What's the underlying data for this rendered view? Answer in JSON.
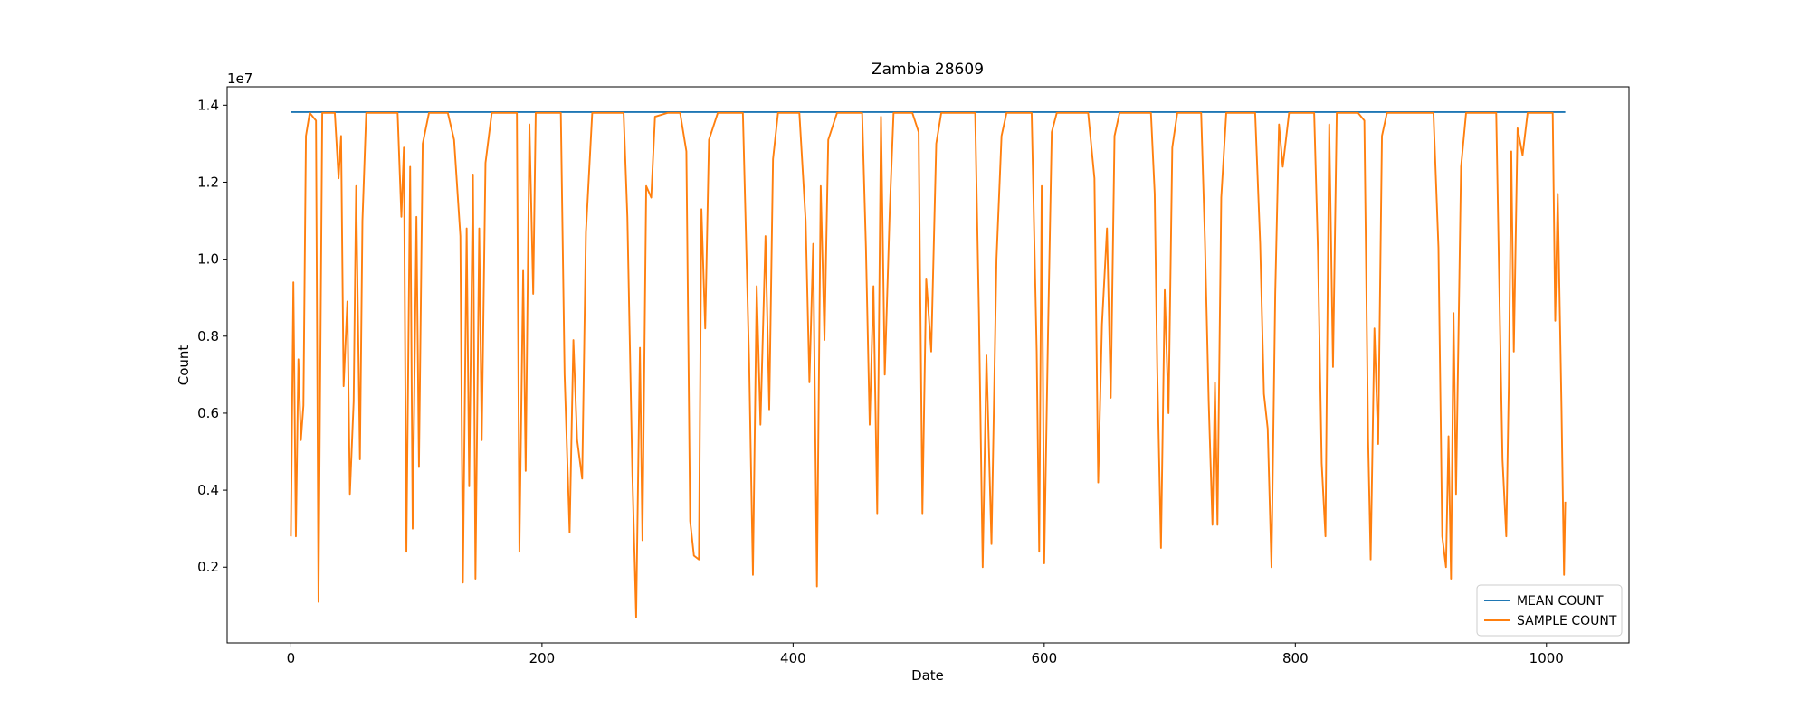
{
  "chart_data": {
    "type": "line",
    "title": "Zambia 28609",
    "x_label": "Date",
    "y_label": "Count",
    "y_offset_label": "1e7",
    "xlim": [
      -50.75,
      1065.75
    ],
    "xticks": [
      0,
      200,
      400,
      600,
      800,
      1000
    ],
    "ylim": [
      33000,
      14477000
    ],
    "yticks": [
      {
        "value": 2000000,
        "label": "0.2"
      },
      {
        "value": 4000000,
        "label": "0.4"
      },
      {
        "value": 6000000,
        "label": "0.6"
      },
      {
        "value": 8000000,
        "label": "0.8"
      },
      {
        "value": 10000000,
        "label": "1.0"
      },
      {
        "value": 12000000,
        "label": "1.2"
      },
      {
        "value": 14000000,
        "label": "1.4"
      }
    ],
    "legend": "lower right",
    "grid": false,
    "series": [
      {
        "name": "MEAN COUNT",
        "color": "#1f77b4",
        "x": [
          0,
          1015
        ],
        "values": [
          13820000,
          13820000
        ]
      },
      {
        "name": "SAMPLE COUNT",
        "color": "#ff7f0e",
        "x": [
          0,
          2,
          4,
          6,
          8,
          10,
          12,
          15,
          20,
          22,
          25,
          35,
          38,
          40,
          42,
          45,
          47,
          50,
          52,
          55,
          57,
          60,
          70,
          80,
          85,
          88,
          90,
          92,
          95,
          97,
          100,
          102,
          105,
          110,
          120,
          125,
          130,
          135,
          137,
          140,
          142,
          145,
          147,
          150,
          152,
          155,
          160,
          170,
          180,
          182,
          185,
          187,
          190,
          193,
          195,
          205,
          215,
          218,
          222,
          225,
          228,
          232,
          235,
          240,
          250,
          265,
          268,
          272,
          275,
          278,
          280,
          283,
          287,
          290,
          300,
          310,
          315,
          318,
          321,
          325,
          327,
          330,
          333,
          340,
          350,
          360,
          365,
          368,
          371,
          374,
          378,
          381,
          384,
          388,
          398,
          405,
          410,
          413,
          416,
          419,
          422,
          425,
          428,
          435,
          445,
          455,
          458,
          461,
          464,
          467,
          470,
          473,
          477,
          480,
          490,
          495,
          500,
          503,
          506,
          510,
          514,
          518,
          530,
          545,
          548,
          551,
          554,
          558,
          562,
          566,
          570,
          580,
          590,
          594,
          596,
          598,
          600,
          603,
          606,
          610,
          620,
          635,
          640,
          643,
          646,
          650,
          653,
          656,
          660,
          670,
          685,
          688,
          690,
          693,
          696,
          699,
          702,
          706,
          715,
          725,
          728,
          731,
          734,
          736,
          738,
          741,
          745,
          755,
          768,
          772,
          775,
          778,
          781,
          784,
          787,
          790,
          795,
          805,
          815,
          818,
          821,
          824,
          827,
          830,
          833,
          840,
          850,
          855,
          858,
          860,
          863,
          866,
          869,
          873,
          885,
          895,
          910,
          914,
          917,
          920,
          922,
          924,
          926,
          928,
          932,
          936,
          945,
          960,
          963,
          965,
          968,
          970,
          972,
          974,
          977,
          981,
          985,
          995,
          1005,
          1007,
          1009,
          1012,
          1014,
          1015
        ],
        "values": [
          2800000,
          9400000,
          2800000,
          7400000,
          5300000,
          6200000,
          13200000,
          13800000,
          13600000,
          1100000,
          13800000,
          13800000,
          12100000,
          13200000,
          6700000,
          8900000,
          3900000,
          6300000,
          11900000,
          4800000,
          11000000,
          13800000,
          13800000,
          13800000,
          13800000,
          11100000,
          12900000,
          2400000,
          12400000,
          3000000,
          11100000,
          4600000,
          13000000,
          13800000,
          13800000,
          13800000,
          13100000,
          10600000,
          1600000,
          10800000,
          4100000,
          12200000,
          1700000,
          10800000,
          5300000,
          12500000,
          13800000,
          13800000,
          13800000,
          2400000,
          9700000,
          4500000,
          13500000,
          9100000,
          13800000,
          13800000,
          13800000,
          7000000,
          2900000,
          7900000,
          5300000,
          4300000,
          10700000,
          13800000,
          13800000,
          13800000,
          11100000,
          4400000,
          700000,
          7700000,
          2700000,
          11900000,
          11600000,
          13700000,
          13800000,
          13800000,
          12800000,
          3200000,
          2300000,
          2200000,
          11300000,
          8200000,
          13100000,
          13800000,
          13800000,
          13800000,
          7300000,
          1800000,
          9300000,
          5700000,
          10600000,
          6100000,
          12600000,
          13800000,
          13800000,
          13800000,
          11000000,
          6800000,
          10400000,
          1500000,
          11900000,
          7900000,
          13100000,
          13800000,
          13800000,
          13800000,
          10300000,
          5700000,
          9300000,
          3400000,
          13700000,
          7000000,
          11300000,
          13800000,
          13800000,
          13800000,
          13300000,
          3400000,
          9500000,
          7600000,
          13000000,
          13800000,
          13800000,
          13800000,
          8600000,
          2000000,
          7500000,
          2600000,
          10000000,
          13200000,
          13800000,
          13800000,
          13800000,
          7600000,
          2400000,
          11900000,
          2100000,
          8000000,
          13300000,
          13800000,
          13800000,
          13800000,
          12100000,
          4200000,
          8300000,
          10800000,
          6400000,
          13200000,
          13800000,
          13800000,
          13800000,
          11700000,
          7200000,
          2500000,
          9200000,
          6000000,
          12900000,
          13800000,
          13800000,
          13800000,
          10500000,
          6300000,
          3100000,
          6800000,
          3100000,
          11600000,
          13800000,
          13800000,
          13800000,
          10400000,
          6500000,
          5600000,
          2000000,
          9100000,
          13500000,
          12400000,
          13800000,
          13800000,
          13800000,
          10200000,
          4700000,
          2800000,
          13500000,
          7200000,
          13800000,
          13800000,
          13800000,
          13600000,
          5300000,
          2200000,
          8200000,
          5200000,
          13200000,
          13800000,
          13800000,
          13800000,
          13800000,
          10300000,
          2800000,
          2000000,
          5400000,
          1700000,
          8600000,
          3900000,
          12400000,
          13800000,
          13800000,
          13800000,
          8300000,
          4800000,
          2800000,
          6700000,
          12800000,
          7600000,
          13400000,
          12700000,
          13800000,
          13800000,
          13800000,
          8400000,
          11700000,
          6100000,
          1800000,
          3700000
        ]
      }
    ]
  }
}
